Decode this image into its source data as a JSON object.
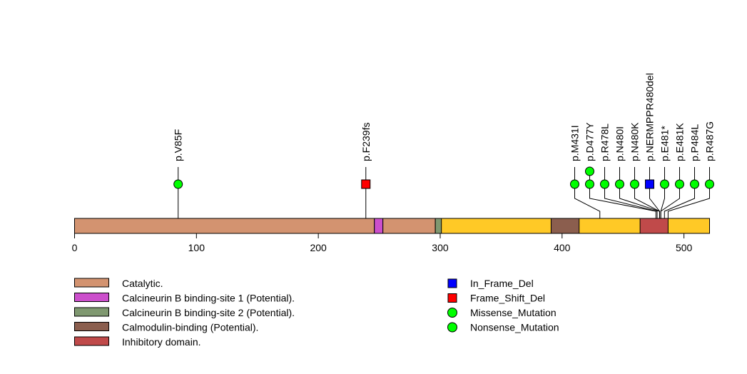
{
  "chart_data": {
    "type": "lollipop",
    "protein_length": 521,
    "xlim": [
      0,
      521
    ],
    "xticks": [
      0,
      100,
      200,
      300,
      400,
      500
    ],
    "backbone_color": "#ffc926",
    "domains": [
      {
        "name": "Catalytic.",
        "start": 0,
        "end": 245,
        "color": "#d39370"
      },
      {
        "name": "Calcineurin B binding-site 1 (Potential).",
        "start": 246,
        "end": 252,
        "color": "#cc4fcc"
      },
      {
        "name": "Catalytic.",
        "start": 253,
        "end": 295,
        "color": "#d39370"
      },
      {
        "name": "Calcineurin B binding-site 2 (Potential).",
        "start": 296,
        "end": 300,
        "color": "#7f9870"
      },
      {
        "name": "Calmodulin-binding (Potential).",
        "start": 391,
        "end": 413,
        "color": "#8b5e4e"
      },
      {
        "name": "Inhibitory domain.",
        "start": 464,
        "end": 486,
        "color": "#c04a4a"
      }
    ],
    "mutations": [
      {
        "label": "p.V85F",
        "position": 85,
        "type": "Missense_Mutation",
        "count": 1
      },
      {
        "label": "p.F239fs",
        "position": 239,
        "type": "Frame_Shift_Del",
        "count": 1
      },
      {
        "label": "p.M431I",
        "position": 431,
        "type": "Missense_Mutation",
        "count": 1
      },
      {
        "label": "p.D477Y",
        "position": 477,
        "type": "Missense_Mutation",
        "count": 2
      },
      {
        "label": "p.R478L",
        "position": 478,
        "type": "Missense_Mutation",
        "count": 1
      },
      {
        "label": "p.N480I",
        "position": 480,
        "type": "Missense_Mutation",
        "count": 1
      },
      {
        "label": "p.N480K",
        "position": 480,
        "type": "Missense_Mutation",
        "count": 1
      },
      {
        "label": "p.NERMPPR480del",
        "position": 480,
        "type": "In_Frame_Del",
        "count": 1
      },
      {
        "label": "p.E481*",
        "position": 481,
        "type": "Nonsense_Mutation",
        "count": 1
      },
      {
        "label": "p.E481K",
        "position": 481,
        "type": "Missense_Mutation",
        "count": 1
      },
      {
        "label": "p.P484L",
        "position": 484,
        "type": "Missense_Mutation",
        "count": 1
      },
      {
        "label": "p.R487G",
        "position": 487,
        "type": "Missense_Mutation",
        "count": 1
      }
    ],
    "domain_legend": [
      {
        "name": "Catalytic.",
        "color": "#d39370"
      },
      {
        "name": "Calcineurin B binding-site 1 (Potential).",
        "color": "#cc4fcc"
      },
      {
        "name": "Calcineurin B binding-site 2 (Potential).",
        "color": "#7f9870"
      },
      {
        "name": "Calmodulin-binding (Potential).",
        "color": "#8b5e4e"
      },
      {
        "name": "Inhibitory domain.",
        "color": "#c04a4a"
      }
    ],
    "type_legend": [
      {
        "name": "In_Frame_Del",
        "shape": "square",
        "color": "#0000ff"
      },
      {
        "name": "Frame_Shift_Del",
        "shape": "square",
        "color": "#ff0000"
      },
      {
        "name": "Missense_Mutation",
        "shape": "circle",
        "color": "#00ff00"
      },
      {
        "name": "Nonsense_Mutation",
        "shape": "circle",
        "color": "#00ff00"
      }
    ]
  }
}
